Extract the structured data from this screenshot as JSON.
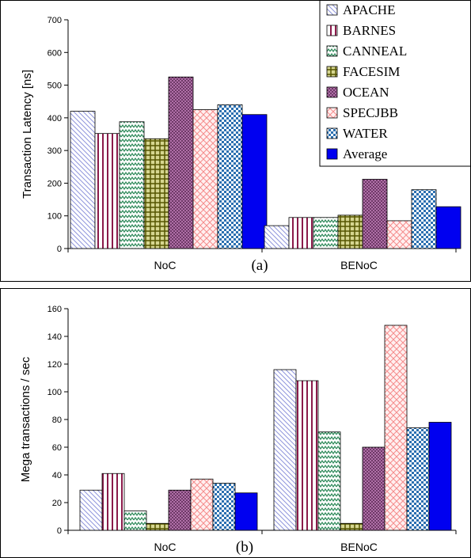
{
  "series_styles": [
    {
      "name": "APACHE",
      "pattern": "apache"
    },
    {
      "name": "BARNES",
      "pattern": "barnes"
    },
    {
      "name": "CANNEAL",
      "pattern": "canneal"
    },
    {
      "name": "FACESIM",
      "pattern": "facesim"
    },
    {
      "name": "OCEAN",
      "pattern": "ocean"
    },
    {
      "name": "SPECJBB",
      "pattern": "specjbb"
    },
    {
      "name": "WATER",
      "pattern": "water"
    },
    {
      "name": "Average",
      "pattern": "average"
    }
  ],
  "chart_data": [
    {
      "type": "bar",
      "tag": "(a)",
      "ylabel": "Transaction Latency [ns]",
      "ylim": [
        0,
        700
      ],
      "yticks": [
        0,
        100,
        200,
        300,
        400,
        500,
        600,
        700
      ],
      "categories": [
        "NoC",
        "BENoC"
      ],
      "legend": "top-right",
      "grid": false,
      "series": [
        {
          "name": "APACHE",
          "values": [
            420,
            70
          ]
        },
        {
          "name": "BARNES",
          "values": [
            352,
            95
          ]
        },
        {
          "name": "CANNEAL",
          "values": [
            388,
            95
          ]
        },
        {
          "name": "FACESIM",
          "values": [
            336,
            102
          ]
        },
        {
          "name": "OCEAN",
          "values": [
            525,
            212
          ]
        },
        {
          "name": "SPECJBB",
          "values": [
            425,
            85
          ]
        },
        {
          "name": "WATER",
          "values": [
            440,
            180
          ]
        },
        {
          "name": "Average",
          "values": [
            410,
            128
          ]
        }
      ]
    },
    {
      "type": "bar",
      "tag": "(b)",
      "ylabel": "Mega transactions / sec",
      "ylim": [
        0,
        160
      ],
      "yticks": [
        0,
        20,
        40,
        60,
        80,
        100,
        120,
        140,
        160
      ],
      "categories": [
        "NoC",
        "BENoC"
      ],
      "grid": false,
      "series": [
        {
          "name": "APACHE",
          "values": [
            29,
            116
          ]
        },
        {
          "name": "BARNES",
          "values": [
            41,
            108
          ]
        },
        {
          "name": "CANNEAL",
          "values": [
            14,
            71
          ]
        },
        {
          "name": "FACESIM",
          "values": [
            5,
            5
          ]
        },
        {
          "name": "OCEAN",
          "values": [
            29,
            60
          ]
        },
        {
          "name": "SPECJBB",
          "values": [
            37,
            148
          ]
        },
        {
          "name": "WATER",
          "values": [
            34,
            74
          ]
        },
        {
          "name": "Average",
          "values": [
            27,
            78
          ]
        }
      ]
    }
  ]
}
